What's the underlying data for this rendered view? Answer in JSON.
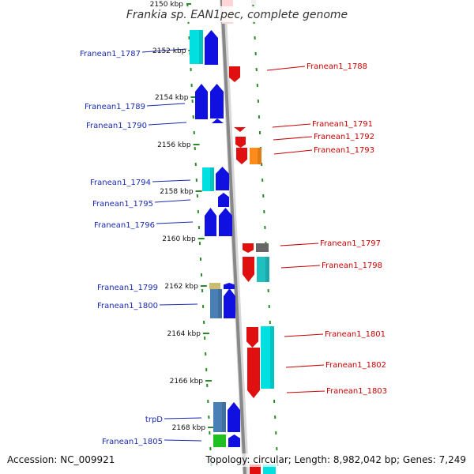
{
  "title": "Frankia sp. EAN1pec, complete genome",
  "top_clipped_tick": "2150 kbp",
  "ticks": [
    {
      "label": "2152 kbp"
    },
    {
      "label": "2154 kbp"
    },
    {
      "label": "2156 kbp"
    },
    {
      "label": "2158 kbp"
    },
    {
      "label": "2160 kbp"
    },
    {
      "label": "2162 kbp"
    },
    {
      "label": "2164 kbp"
    },
    {
      "label": "2166 kbp"
    },
    {
      "label": "2168 kbp"
    }
  ],
  "genes_left": [
    {
      "label": "Franean1_1787"
    },
    {
      "label": "Franean1_1789"
    },
    {
      "label": "Franean1_1790"
    },
    {
      "label": "Franean1_1794"
    },
    {
      "label": "Franean1_1795"
    },
    {
      "label": "Franean1_1796"
    },
    {
      "label": "Franean1_1799"
    },
    {
      "label": "Franean1_1800"
    },
    {
      "label": "trpD"
    },
    {
      "label": "Franean1_1805"
    }
  ],
  "genes_right": [
    {
      "label": "Franean1_1788"
    },
    {
      "label": "Franean1_1791"
    },
    {
      "label": "Franean1_1792"
    },
    {
      "label": "Franean1_1793"
    },
    {
      "label": "Franean1_1797"
    },
    {
      "label": "Franean1_1798"
    },
    {
      "label": "Franean1_1801"
    },
    {
      "label": "Franean1_1802"
    },
    {
      "label": "Franean1_1803"
    }
  ],
  "colors": {
    "forward_strand": "#1010e0",
    "reverse_strand": "#e01010",
    "cyan_feature": "#00e0e0",
    "steel_feature": "#4a7fb5",
    "orange_feature": "#ff8c1a",
    "grey_feature": "#666666",
    "olive_feature": "#c8bd72",
    "green_feature": "#20c020",
    "tick_marks": "#2a8a2a",
    "backbone": "#888888",
    "left_labels": "#1a2cb0",
    "right_labels": "#cc0000"
  },
  "footer": {
    "accession": "Accession: NC_009921",
    "topology": "Topology: circular; Length: 8,982,042 bp; Genes: 7,249"
  }
}
